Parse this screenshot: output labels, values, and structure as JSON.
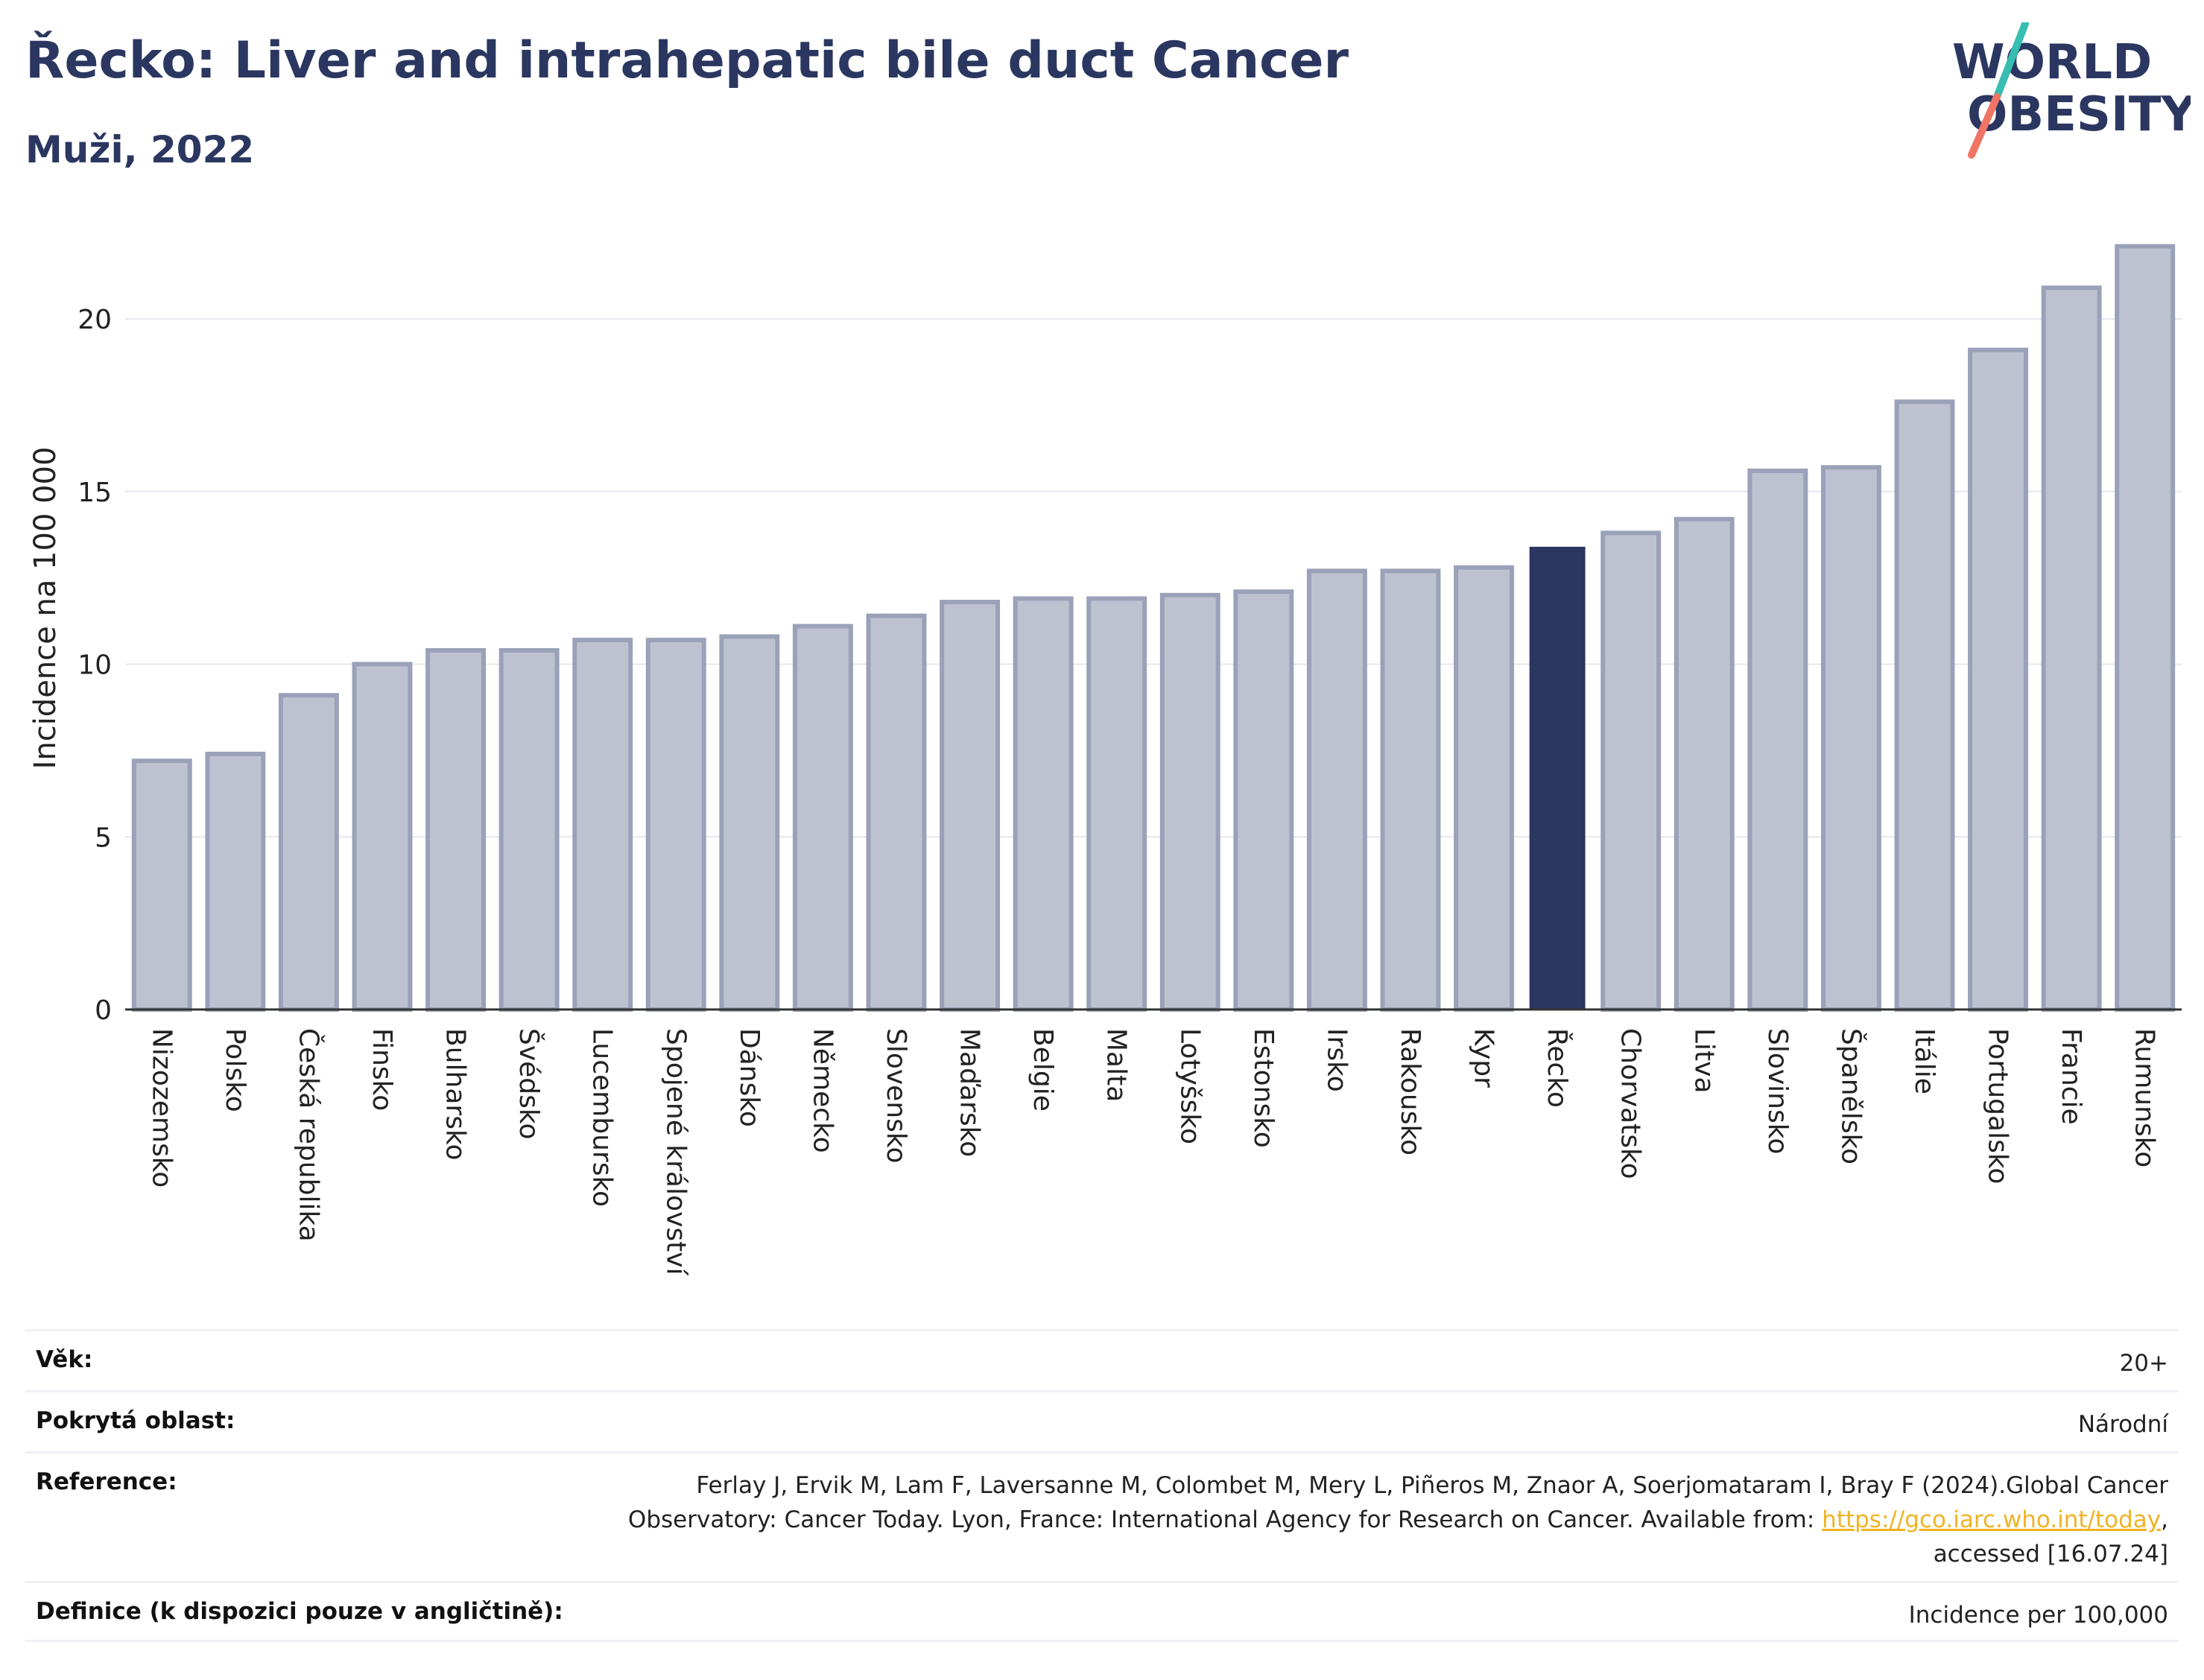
{
  "header": {
    "title": "Řecko: Liver and intrahepatic bile duct Cancer",
    "subtitle": "Muži, 2022"
  },
  "logo": {
    "line1": "WORLD",
    "line2": "OBESITY",
    "text_color": "#2b3760",
    "slash_colors": [
      "#37bdb1",
      "#f07464"
    ]
  },
  "colors": {
    "bar_default": "#bec2d0",
    "bar_border": "#9aa1b8",
    "bar_highlight": "#2b3760",
    "gridline": "#e6e8ef",
    "axis": "#333333",
    "link": "#f0b323"
  },
  "chart_data": {
    "type": "bar",
    "ylabel": "Incidence na 100 000",
    "xlabel": "",
    "ylim": [
      0,
      22.5
    ],
    "yticks": [
      0,
      5,
      10,
      15,
      20
    ],
    "grid": true,
    "highlight": "Řecko",
    "categories": [
      "Nizozemsko",
      "Polsko",
      "Česká republika",
      "Finsko",
      "Bulharsko",
      "Švédsko",
      "Lucembursko",
      "Spojené království",
      "Dánsko",
      "Německo",
      "Slovensko",
      "Maďarsko",
      "Belgie",
      "Malta",
      "Lotyšsko",
      "Estonsko",
      "Irsko",
      "Rakousko",
      "Kypr",
      "Řecko",
      "Chorvatsko",
      "Litva",
      "Slovinsko",
      "Španělsko",
      "Itálie",
      "Portugalsko",
      "Francie",
      "Rumunsko"
    ],
    "values": [
      7.2,
      7.4,
      9.1,
      10.0,
      10.4,
      10.4,
      10.7,
      10.7,
      10.8,
      11.1,
      11.4,
      11.8,
      11.9,
      11.9,
      12.0,
      12.1,
      12.7,
      12.7,
      12.8,
      13.4,
      13.8,
      14.2,
      15.6,
      15.7,
      17.6,
      19.1,
      20.9,
      22.1
    ]
  },
  "meta": {
    "age_label": "Věk:",
    "age_value": "20+",
    "area_label": "Pokrytá oblast:",
    "area_value": "Národní",
    "reference_label": "Reference:",
    "reference_text_1": "Ferlay J, Ervik M, Lam F, Laversanne M, Colombet M, Mery L, Piñeros M, Znaor A, Soerjomataram I, Bray F (2024).Global Cancer",
    "reference_text_2": "Observatory: Cancer Today. Lyon, France: International Agency for Research on Cancer. Available from: ",
    "reference_link": "https://gco.iarc.who.int/today",
    "reference_text_3": ",",
    "reference_text_4": "accessed [16.07.24]",
    "definition_label": "Definice (k dispozici pouze v angličtině):",
    "definition_value": "Incidence per 100,000"
  }
}
